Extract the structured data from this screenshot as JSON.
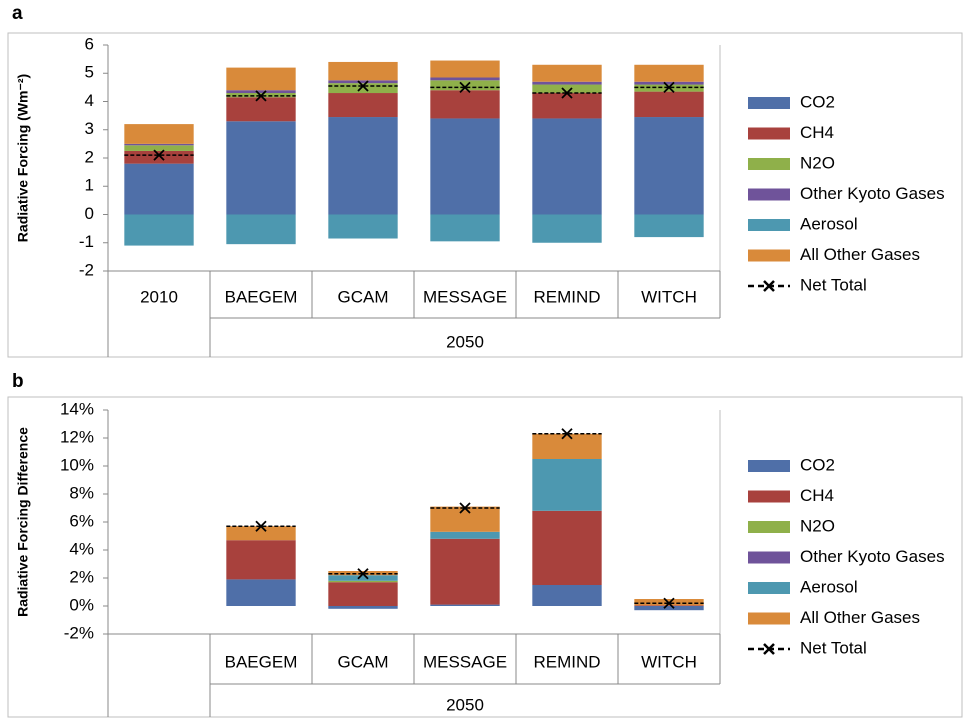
{
  "chart_data": [
    {
      "type": "bar",
      "stacked": true,
      "panel_label": "a",
      "ylabel": "Radiative Forcing (Wm⁻²)",
      "categories": [
        "2010",
        "BAEGEM",
        "GCAM",
        "MESSAGE",
        "REMIND",
        "WITCH"
      ],
      "group_label": "2050",
      "ylim": [
        -2,
        6
      ],
      "yticks": [
        -2,
        -1,
        0,
        1,
        2,
        3,
        4,
        5,
        6
      ],
      "series": [
        {
          "name": "CO2",
          "color": "#4f6fa8",
          "values": [
            1.8,
            3.3,
            3.45,
            3.4,
            3.4,
            3.45
          ]
        },
        {
          "name": "CH4",
          "color": "#a8413d",
          "values": [
            0.45,
            0.85,
            0.85,
            1.0,
            0.9,
            0.9
          ]
        },
        {
          "name": "N2O",
          "color": "#8fb04a",
          "values": [
            0.2,
            0.15,
            0.35,
            0.35,
            0.3,
            0.25
          ]
        },
        {
          "name": "Other Kyoto Gases",
          "color": "#6f539a",
          "values": [
            0.05,
            0.1,
            0.1,
            0.1,
            0.1,
            0.1
          ]
        },
        {
          "name": "Aerosol",
          "color": "#4d98b0",
          "values": [
            -1.1,
            -1.05,
            -0.85,
            -0.95,
            -1.0,
            -0.8
          ]
        },
        {
          "name": "All Other Gases",
          "color": "#d98a3a",
          "values": [
            0.7,
            0.8,
            0.65,
            0.6,
            0.6,
            0.6
          ]
        }
      ],
      "net": {
        "name": "Net Total",
        "color": "#000000",
        "values": [
          2.1,
          4.2,
          4.55,
          4.5,
          4.3,
          4.5
        ]
      }
    },
    {
      "type": "bar",
      "stacked": true,
      "panel_label": "b",
      "ylabel": "Radiative Forcing Difference",
      "categories": [
        null,
        "BAEGEM",
        "GCAM",
        "MESSAGE",
        "REMIND",
        "WITCH"
      ],
      "group_label": "2050",
      "ylim": [
        -2,
        14
      ],
      "yticks": [
        {
          "value": -2,
          "label": "-2%"
        },
        {
          "value": 0,
          "label": "0%"
        },
        {
          "value": 2,
          "label": "2%"
        },
        {
          "value": 4,
          "label": "4%"
        },
        {
          "value": 6,
          "label": "6%"
        },
        {
          "value": 8,
          "label": "8%"
        },
        {
          "value": 10,
          "label": "10%"
        },
        {
          "value": 12,
          "label": "12%"
        },
        {
          "value": 14,
          "label": "14%"
        }
      ],
      "series": [
        {
          "name": "CO2",
          "color": "#4f6fa8",
          "values": [
            null,
            1.9,
            -0.2,
            0.1,
            1.5,
            -0.3
          ]
        },
        {
          "name": "CH4",
          "color": "#a8413d",
          "values": [
            null,
            2.8,
            1.7,
            4.7,
            5.3,
            0.05
          ]
        },
        {
          "name": "N2O",
          "color": "#8fb04a",
          "values": [
            null,
            0.0,
            0.1,
            0.0,
            0.0,
            0.0
          ]
        },
        {
          "name": "Other Kyoto Gases",
          "color": "#6f539a",
          "values": [
            null,
            0.0,
            0.0,
            0.0,
            0.0,
            0.0
          ]
        },
        {
          "name": "Aerosol",
          "color": "#4d98b0",
          "values": [
            null,
            0.0,
            0.4,
            0.5,
            3.7,
            0.0
          ]
        },
        {
          "name": "All Other Gases",
          "color": "#d98a3a",
          "values": [
            null,
            1.0,
            0.3,
            1.8,
            1.8,
            0.45
          ]
        }
      ],
      "net": {
        "name": "Net Total",
        "color": "#000000",
        "values": [
          null,
          5.7,
          2.3,
          7.0,
          12.3,
          0.2
        ]
      }
    }
  ]
}
